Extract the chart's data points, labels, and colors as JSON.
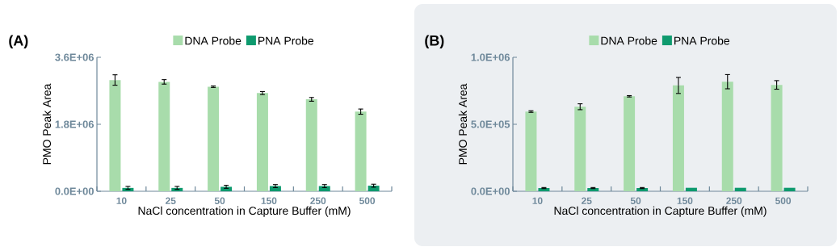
{
  "chart_data": [
    {
      "type": "bar",
      "title": "(A)",
      "xlabel": "NaCl concentration in Capture Buffer (mM)",
      "ylabel": "PMO Peak Area",
      "categories": [
        "10",
        "25",
        "50",
        "150",
        "250",
        "500"
      ],
      "ylim": [
        0,
        3600000
      ],
      "yticks": [
        {
          "value": 0,
          "label": "0.0E+00"
        },
        {
          "value": 1800000,
          "label": "1.8E+06"
        },
        {
          "value": 3600000,
          "label": "3.6E+06"
        }
      ],
      "legend": "top",
      "series": [
        {
          "name": "DNA Probe",
          "color": "#a8dcab",
          "values": [
            2990000,
            2940000,
            2810000,
            2640000,
            2470000,
            2140000
          ],
          "errors": [
            140000,
            60000,
            20000,
            40000,
            50000,
            70000
          ]
        },
        {
          "name": "PNA Probe",
          "color": "#0e9a6e",
          "values": [
            90000,
            90000,
            120000,
            140000,
            140000,
            150000
          ],
          "errors": [
            40000,
            40000,
            40000,
            40000,
            40000,
            40000
          ]
        }
      ]
    },
    {
      "type": "bar",
      "title": "(B)",
      "xlabel": "NaCl concentration in Capture Buffer (mM)",
      "ylabel": "PMO Peak Area",
      "categories": [
        "10",
        "25",
        "50",
        "150",
        "250",
        "500"
      ],
      "ylim": [
        0,
        1000000
      ],
      "yticks": [
        {
          "value": 0,
          "label": "0.0E+00"
        },
        {
          "value": 500000,
          "label": "5.0E+05"
        },
        {
          "value": 1000000,
          "label": "1.0E+06"
        }
      ],
      "legend": "top",
      "series": [
        {
          "name": "DNA Probe",
          "color": "#a8dcab",
          "values": [
            595000,
            631000,
            709000,
            790000,
            818000,
            794000
          ],
          "errors": [
            6000,
            22000,
            5000,
            60000,
            53000,
            32000
          ]
        },
        {
          "name": "PNA Probe",
          "color": "#0e9a6e",
          "values": [
            24000,
            24000,
            24000,
            26000,
            26000,
            26000
          ],
          "errors": [
            4000,
            4000,
            4000,
            null,
            null,
            null
          ]
        }
      ]
    }
  ]
}
